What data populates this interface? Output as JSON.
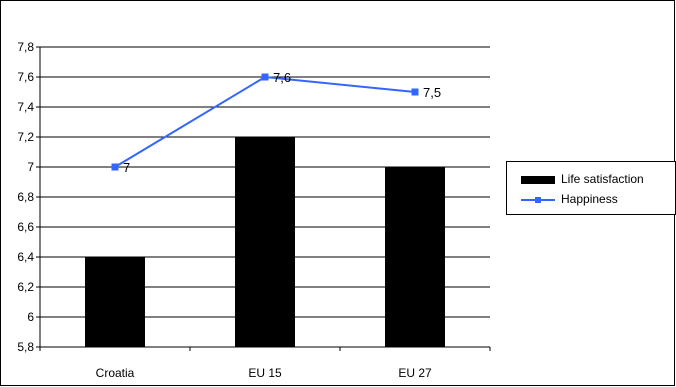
{
  "chart_data": {
    "type": "bar",
    "categories": [
      "Croatia",
      "EU 15",
      "EU 27"
    ],
    "series": [
      {
        "name": "Life satisfaction",
        "kind": "bar",
        "values": [
          6.4,
          7.2,
          7.0
        ],
        "color": "#000000"
      },
      {
        "name": "Happiness",
        "kind": "line",
        "values": [
          7.0,
          7.6,
          7.5
        ],
        "color": "#3366ff",
        "data_labels": [
          "7",
          "7,6",
          "7,5"
        ]
      }
    ],
    "title": "",
    "xlabel": "",
    "ylabel": "",
    "ylim": [
      5.8,
      7.8
    ],
    "yticks": [
      5.8,
      6.0,
      6.2,
      6.4,
      6.6,
      6.8,
      7.0,
      7.2,
      7.4,
      7.6,
      7.8
    ],
    "ytick_labels": [
      "5,8",
      "6",
      "6,2",
      "6,4",
      "6,6",
      "6,8",
      "7",
      "7,2",
      "7,4",
      "7,6",
      "7,8"
    ],
    "grid": true,
    "legend_position": "right"
  }
}
